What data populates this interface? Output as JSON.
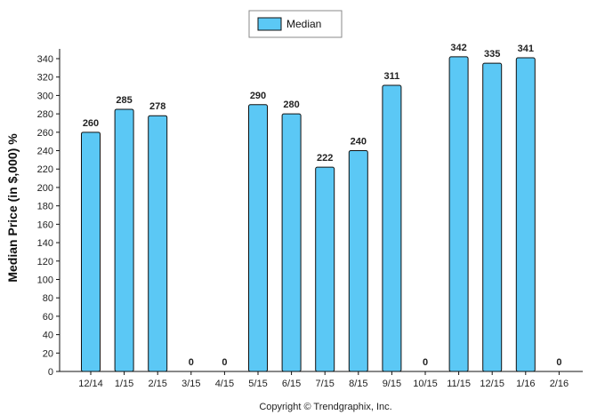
{
  "chart_data": {
    "type": "bar",
    "categories": [
      "12/14",
      "1/15",
      "2/15",
      "3/15",
      "4/15",
      "5/15",
      "6/15",
      "7/15",
      "8/15",
      "9/15",
      "10/15",
      "11/15",
      "12/15",
      "1/16",
      "2/16"
    ],
    "series": [
      {
        "name": "Median",
        "values": [
          260,
          285,
          278,
          0,
          0,
          290,
          280,
          222,
          240,
          311,
          0,
          342,
          335,
          341,
          0
        ]
      }
    ],
    "data_labels": [
      "260",
      "285",
      "278",
      "0",
      "0",
      "290",
      "280",
      "222",
      "240",
      "311",
      "0",
      "342",
      "335",
      "341",
      "0"
    ],
    "ylabel": "Median Price (in $,000) %",
    "xlabel": "",
    "ylim": [
      0,
      340
    ],
    "yticks": [
      0,
      20,
      40,
      60,
      80,
      100,
      120,
      140,
      160,
      180,
      200,
      220,
      240,
      260,
      280,
      300,
      320,
      340
    ],
    "legend_position": "top-center",
    "grid": false,
    "bar_color": "#5bc8f5",
    "bar_edge_color": "#111111"
  },
  "footer": {
    "copyright": "Copyright © Trendgraphix, Inc."
  }
}
